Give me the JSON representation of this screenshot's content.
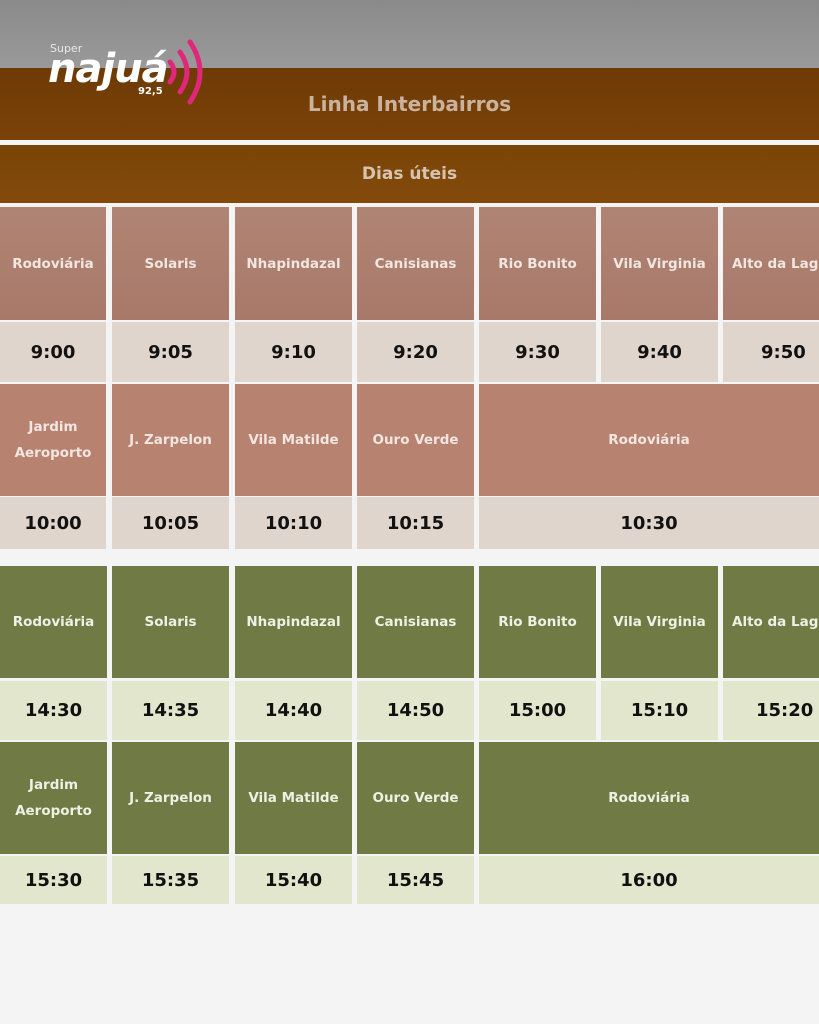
{
  "logo": {
    "super": "Super",
    "brand": "najuá",
    "freq": "92,5"
  },
  "title": "Linha Interbairros",
  "subtitle": "Dias úteis",
  "morning": {
    "row1": {
      "stops": [
        "Rodoviária",
        "Solaris",
        "Nhapindazal",
        "Canisianas",
        "Rio Bonito",
        "Vila Virginia",
        "Alto da Lago"
      ],
      "times": [
        "9:00",
        "9:05",
        "9:10",
        "9:20",
        "9:30",
        "9:40",
        "9:50"
      ]
    },
    "row2": {
      "stops": [
        "Jardim Aeroporto",
        "J. Zarpelon",
        "Vila Matilde",
        "Ouro Verde",
        "Rodoviária"
      ],
      "times": [
        "10:00",
        "10:05",
        "10:10",
        "10:15",
        "10:30"
      ]
    }
  },
  "afternoon": {
    "row1": {
      "stops": [
        "Rodoviária",
        "Solaris",
        "Nhapindazal",
        "Canisianas",
        "Rio Bonito",
        "Vila Virginia",
        "Alto da Lago"
      ],
      "times": [
        "14:30",
        "14:35",
        "14:40",
        "14:50",
        "15:00",
        "15:10",
        "15:20"
      ]
    },
    "row2": {
      "stops": [
        "Jardim Aeroporto",
        "J. Zarpelon",
        "Vila Matilde",
        "Ouro Verde",
        "Rodoviária"
      ],
      "times": [
        "15:30",
        "15:35",
        "15:40",
        "15:45",
        "16:00"
      ]
    }
  },
  "colors": {
    "brown_header": "#7b4209",
    "brown_stop": "#b08474",
    "green_stop": "#6f7a45",
    "green_time": "#e2e6cd"
  }
}
